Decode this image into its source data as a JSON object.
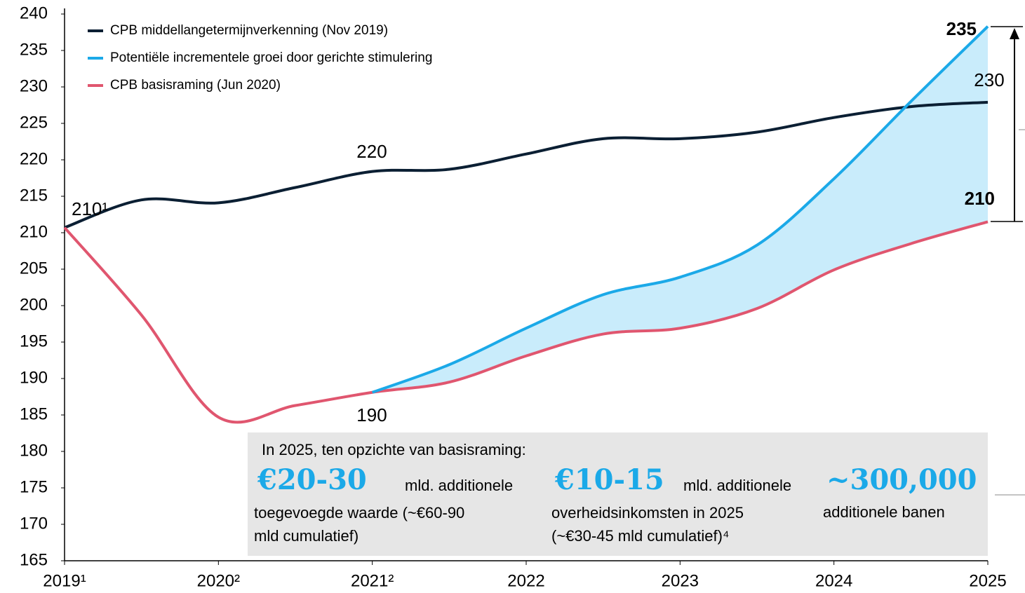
{
  "chart_data": {
    "type": "line",
    "x": [
      2019,
      2019.5,
      2020,
      2020.5,
      2021,
      2021.5,
      2022,
      2022.5,
      2023,
      2023.5,
      2024,
      2024.5,
      2025
    ],
    "series": [
      {
        "name": "CPB middellangetermijnverkenning (Nov 2019)",
        "color": "#0b1f33",
        "values": [
          210.7,
          214.5,
          214.1,
          216.2,
          218.4,
          218.7,
          220.8,
          222.9,
          222.9,
          223.8,
          225.8,
          227.3,
          227.9
        ]
      },
      {
        "name": "Potentiële incrementele groei door gerichte stimulering",
        "color": "#1ba9e8",
        "values": [
          null,
          null,
          null,
          null,
          188.1,
          191.9,
          196.9,
          201.5,
          203.9,
          208.3,
          217.4,
          228.0,
          238.3
        ]
      },
      {
        "name": "CPB basisraming (Jun 2020)",
        "color": "#e0566f",
        "values": [
          210.7,
          198.7,
          184.7,
          186.3,
          188.1,
          189.5,
          193.1,
          196.1,
          196.9,
          199.6,
          204.9,
          208.5,
          211.5
        ]
      }
    ],
    "fill_color": "#c9ecfb",
    "xlim": [
      2019,
      2025
    ],
    "xticks": [
      {
        "value": 2019,
        "label": "2019¹"
      },
      {
        "value": 2020,
        "label": "2020²"
      },
      {
        "value": 2021,
        "label": "2021²"
      },
      2022,
      2023,
      2024,
      2025
    ],
    "ylim": [
      165,
      240
    ],
    "yticks": [
      165,
      170,
      175,
      180,
      185,
      190,
      195,
      200,
      205,
      210,
      215,
      220,
      225,
      230,
      235,
      240
    ],
    "legend": "top-left",
    "annotations": [
      "210¹",
      "220",
      "190",
      "235",
      "230",
      "210"
    ],
    "box": {
      "heading": "In 2025, ten opzichte van basisraming:",
      "columns": [
        {
          "big": "€20-30",
          "lines": [
            "mld. additionele",
            "toegevoegde waarde (~€60-90",
            "mld cumulatief)"
          ]
        },
        {
          "big": "€10-15",
          "lines": [
            "mld. additionele",
            "overheidsinkomsten in 2025",
            "(~€30-45 mld cumulatief)⁴"
          ]
        },
        {
          "big": "~300,000",
          "lines": [
            "additionele banen"
          ]
        }
      ]
    }
  }
}
